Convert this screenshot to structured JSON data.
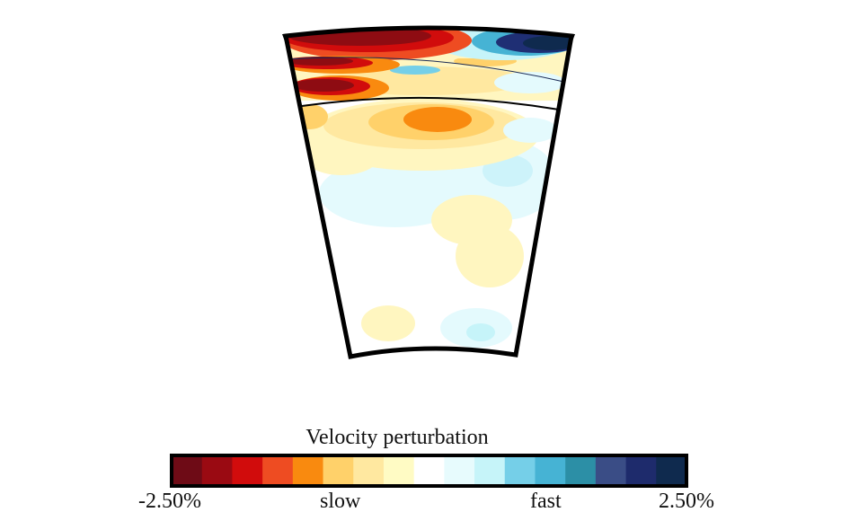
{
  "colorbar": {
    "title": "Velocity perturbation",
    "label_min": "-2.50%",
    "label_slow": "slow",
    "label_fast": "fast",
    "label_max": "2.50%",
    "colors": [
      "#6e0b16",
      "#9a0a12",
      "#d10c0c",
      "#ee4c22",
      "#f98a0f",
      "#ffd16a",
      "#ffe8a0",
      "#fffbc4",
      "#ffffff",
      "#e7fbfd",
      "#c6f4f9",
      "#75cfe8",
      "#46b3d4",
      "#2c8fa6",
      "#3a4d86",
      "#1e2b6c",
      "#0f2a4e"
    ]
  },
  "section": {
    "colors": {
      "frame": "#000000",
      "deep_red": "#8e0c12",
      "red": "#cc1010",
      "orange": "#f7860f",
      "yellow": "#ffd878",
      "pale_yellow": "#fff6c0",
      "pale_blue": "#e4fafd",
      "light_blue": "#a8e6f3",
      "blue": "#1f2f74"
    }
  }
}
